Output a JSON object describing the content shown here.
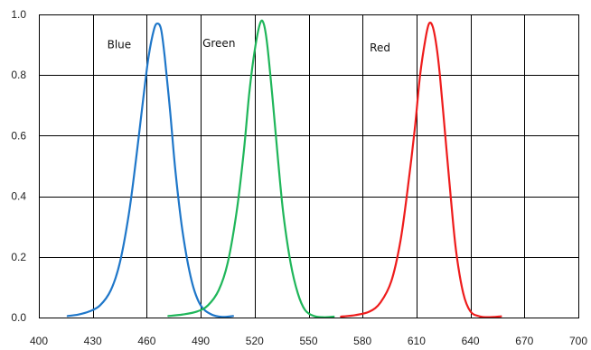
{
  "chart_data": {
    "type": "line",
    "title": "",
    "xlabel": "",
    "ylabel": "",
    "xlim": [
      400,
      700
    ],
    "ylim": [
      0,
      1
    ],
    "x_ticks": [
      400,
      430,
      460,
      490,
      520,
      550,
      580,
      610,
      640,
      670,
      700
    ],
    "x_tick_labels": [
      "400",
      "430",
      "460",
      "490",
      "520",
      "550",
      "580",
      "610",
      "640",
      "670",
      "700"
    ],
    "y_ticks": [
      0,
      0.2,
      0.4,
      0.6,
      0.8,
      1
    ],
    "y_tick_labels": [
      "0.0",
      "0.2",
      "0.4",
      "0.6",
      "0.8",
      "1.0"
    ],
    "grid": true,
    "legend": false,
    "series": [
      {
        "name": "Blue",
        "color": "#1f77c9",
        "x": [
          416,
          422,
          428,
          434,
          440,
          445,
          450,
          454,
          458,
          461,
          464,
          466,
          468,
          470,
          473,
          476,
          480,
          485,
          490,
          496,
          502,
          508
        ],
        "y": [
          0.005,
          0.01,
          0.02,
          0.04,
          0.09,
          0.18,
          0.34,
          0.52,
          0.72,
          0.86,
          0.95,
          0.97,
          0.95,
          0.86,
          0.68,
          0.48,
          0.28,
          0.12,
          0.04,
          0.01,
          0.002,
          0.005
        ]
      },
      {
        "name": "Green",
        "color": "#1fb65a",
        "x": [
          472,
          480,
          488,
          494,
          500,
          505,
          510,
          514,
          517,
          520,
          523,
          525,
          527,
          530,
          533,
          536,
          540,
          544,
          548,
          553,
          558,
          564
        ],
        "y": [
          0.005,
          0.01,
          0.02,
          0.04,
          0.09,
          0.18,
          0.35,
          0.55,
          0.74,
          0.88,
          0.97,
          0.97,
          0.9,
          0.72,
          0.52,
          0.34,
          0.18,
          0.08,
          0.025,
          0.005,
          0.001,
          0.003
        ]
      },
      {
        "name": "Red",
        "color": "#ee1c1c",
        "x": [
          568,
          576,
          584,
          590,
          596,
          601,
          605,
          609,
          612,
          615,
          617,
          619,
          621,
          623,
          626,
          629,
          632,
          636,
          640,
          645,
          650,
          657
        ],
        "y": [
          0.003,
          0.008,
          0.02,
          0.05,
          0.12,
          0.25,
          0.42,
          0.62,
          0.8,
          0.92,
          0.97,
          0.96,
          0.9,
          0.8,
          0.6,
          0.4,
          0.22,
          0.08,
          0.02,
          0.004,
          0.001,
          0.004
        ]
      }
    ],
    "annotations": [
      {
        "text": "Blue",
        "x": 438,
        "y": 0.9
      },
      {
        "text": "Green",
        "x": 491,
        "y": 0.905
      },
      {
        "text": "Red",
        "x": 584,
        "y": 0.89
      }
    ]
  }
}
